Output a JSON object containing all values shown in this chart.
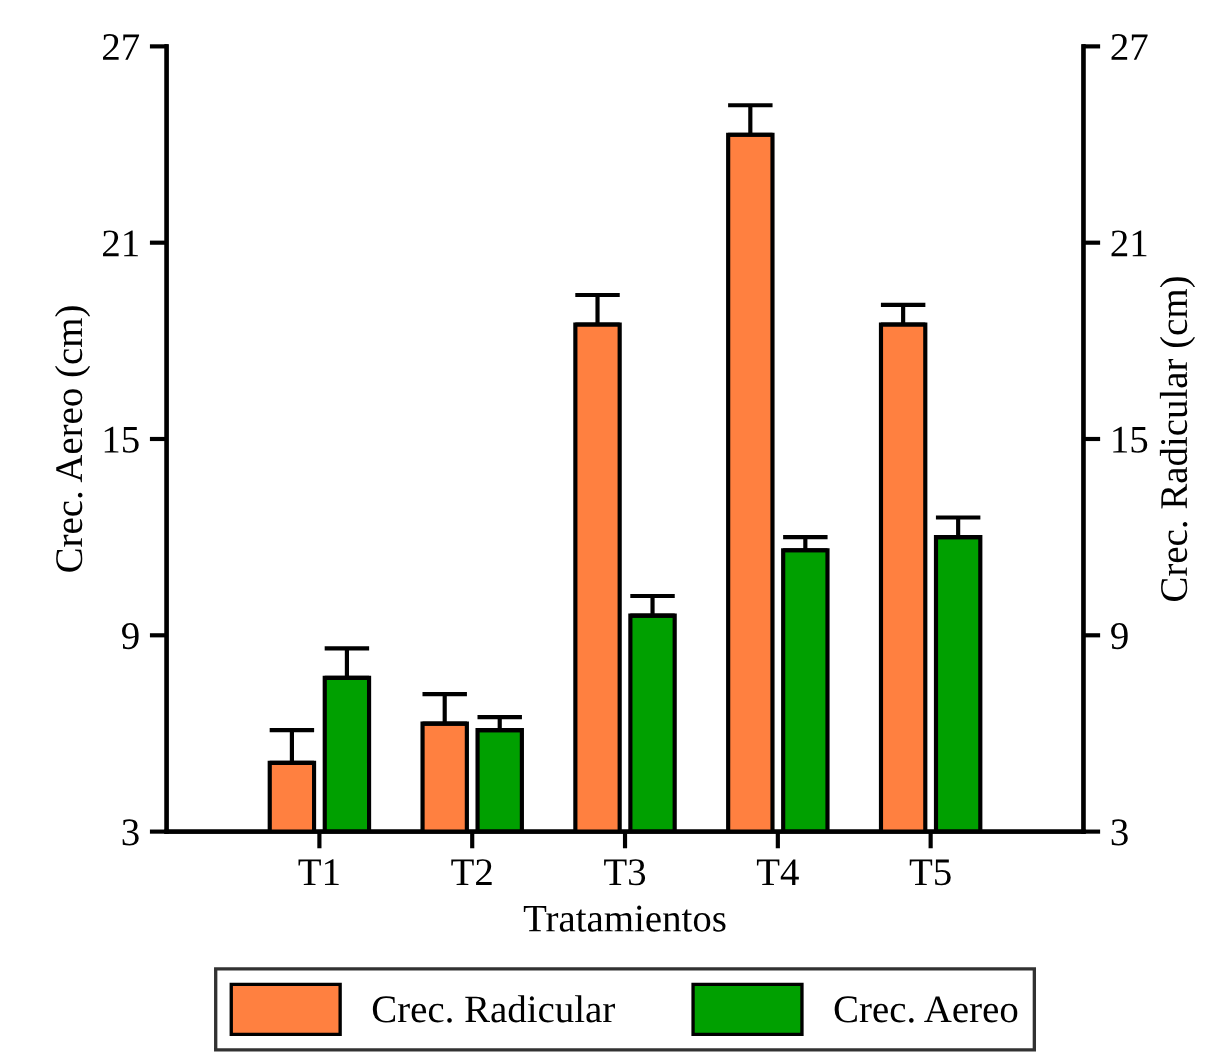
{
  "chart_data": {
    "type": "bar",
    "xlabel": "Tratamientos",
    "ylabel": "Crec. Aereo (cm)",
    "y2label": "Crec. Radicular (cm)",
    "categories": [
      "T1",
      "T2",
      "T3",
      "T4",
      "T5"
    ],
    "series": [
      {
        "name": "Crec. Radicular",
        "color": "#ff8040",
        "axis": "y2",
        "values": [
          5.1,
          6.3,
          18.5,
          24.3,
          18.5
        ],
        "errors": [
          [
            5.1,
            6.1
          ],
          [
            6.3,
            7.2
          ],
          [
            18.5,
            19.4
          ],
          [
            24.3,
            25.2
          ],
          [
            18.5,
            19.1
          ]
        ]
      },
      {
        "name": "Crec. Aereo",
        "color": "#00a000",
        "values": [
          7.7,
          6.1,
          9.6,
          11.6,
          12.0
        ],
        "errors": [
          [
            7.7,
            8.6
          ],
          [
            6.1,
            6.5
          ],
          [
            9.6,
            10.2
          ],
          [
            11.6,
            12.0
          ],
          [
            12.0,
            12.6
          ]
        ]
      }
    ],
    "ylim": [
      3,
      27
    ],
    "yticks": [
      3,
      9,
      15,
      21,
      27
    ],
    "y2lim": [
      3,
      27
    ],
    "y2ticks": [
      3,
      9,
      15,
      21,
      27
    ],
    "grid": false,
    "legend": "bottom"
  }
}
